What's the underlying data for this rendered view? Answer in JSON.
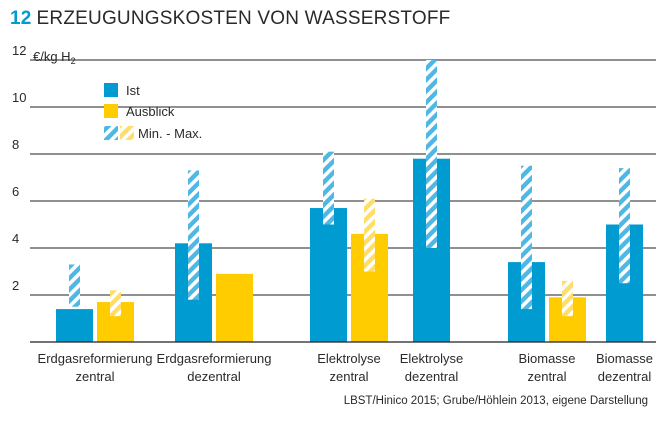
{
  "title": {
    "number": "12",
    "text": "ERZEUGUNGSKOSTEN VON WASSERSTOFF"
  },
  "source": "LBST/Hinico 2015; Grube/Höhlein 2013, eigene Darstellung",
  "colors": {
    "ist": "#009bd0",
    "ausblick": "#ffcc00",
    "ist_range": "#4fb7e4",
    "ausblick_range": "#ffdd66"
  },
  "chart_data": {
    "type": "bar",
    "unit_label": "€/kg H",
    "unit_subscript": "2",
    "ylim": [
      0,
      12
    ],
    "y_ticks": [
      {
        "label": "12",
        "value": 12
      },
      {
        "label": "10",
        "value": 10
      },
      {
        "label": "8",
        "value": 8
      },
      {
        "label": "6",
        "value": 6
      },
      {
        "label": "4",
        "value": 4
      },
      {
        "label": "2",
        "value": 2
      }
    ],
    "grid": true,
    "legend_position": "top-left",
    "legend": [
      {
        "key": "ist",
        "label": "Ist"
      },
      {
        "key": "ausblick",
        "label": "Ausblick"
      },
      {
        "key": "range",
        "label": "Min. - Max."
      }
    ],
    "groups": [
      {
        "label_lines": [
          "Erdgasreformierung",
          "zentral"
        ],
        "bars": [
          {
            "series": "ist",
            "value": 1.4,
            "min": 1.5,
            "max": 3.3
          },
          {
            "series": "ausblick",
            "value": 1.7,
            "min": 1.1,
            "max": 2.2
          }
        ]
      },
      {
        "label_lines": [
          "Erdgasreformierung",
          "dezentral"
        ],
        "bars": [
          {
            "series": "ist",
            "value": 4.2,
            "min": 1.8,
            "max": 7.3
          },
          {
            "series": "ausblick",
            "value": 2.9
          }
        ]
      },
      {
        "label_lines": [
          "Elektrolyse",
          "zentral"
        ],
        "bars": [
          {
            "series": "ist",
            "value": 5.7,
            "min": 5.0,
            "max": 8.1
          },
          {
            "series": "ausblick",
            "value": 4.6,
            "min": 3.0,
            "max": 6.1
          }
        ]
      },
      {
        "label_lines": [
          "Elektrolyse",
          "dezentral"
        ],
        "bars": [
          {
            "series": "ist",
            "value": 7.8,
            "min": 4.0,
            "max": 12.0
          }
        ]
      },
      {
        "label_lines": [
          "Biomasse",
          "zentral"
        ],
        "bars": [
          {
            "series": "ist",
            "value": 3.4,
            "min": 1.4,
            "max": 7.5
          },
          {
            "series": "ausblick",
            "value": 1.9,
            "min": 1.1,
            "max": 2.6
          }
        ]
      },
      {
        "label_lines": [
          "Biomasse",
          "dezentral"
        ],
        "bars": [
          {
            "series": "ist",
            "value": 5.0,
            "min": 2.5,
            "max": 7.4
          }
        ]
      }
    ]
  }
}
